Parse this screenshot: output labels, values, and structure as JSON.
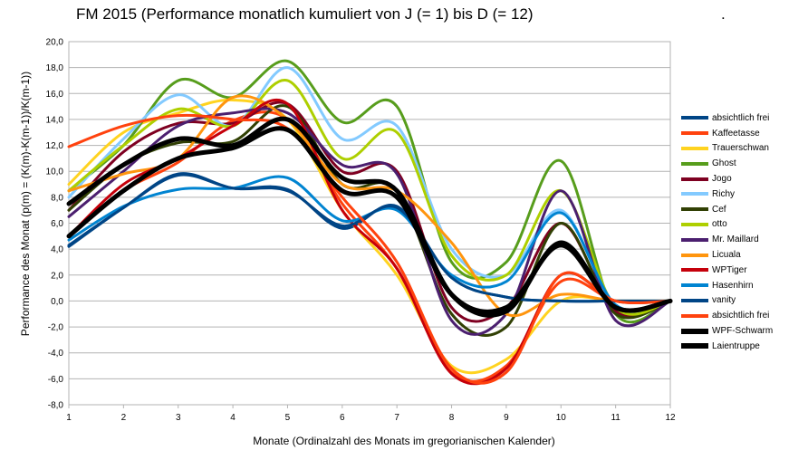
{
  "chart_data": {
    "type": "line",
    "title": "FM 2015 (Performance monatlich kumuliert von J (= 1) bis D (= 12)",
    "title_suffix": ".",
    "xlabel": "Monate (Ordinalzahl des Monats im gregorianischen Kalender)",
    "ylabel": "Performance des Monat (p(m) = (K(m)-K(m-1))/K(m-1))",
    "x": [
      1,
      2,
      3,
      4,
      5,
      6,
      7,
      8,
      9,
      10,
      11,
      12
    ],
    "xlim": [
      1,
      12
    ],
    "ylim": [
      -8,
      20
    ],
    "yticks": [
      "-8,0",
      "-6,0",
      "-4,0",
      "-2,0",
      "0,0",
      "2,0",
      "4,0",
      "6,0",
      "8,0",
      "10,0",
      "12,0",
      "14,0",
      "16,0",
      "18,0",
      "20,0"
    ],
    "xticks": [
      "1",
      "2",
      "3",
      "4",
      "5",
      "6",
      "7",
      "8",
      "9",
      "10",
      "11",
      "12"
    ],
    "grid": true,
    "legend_position": "right",
    "series": [
      {
        "name": "absichtlich frei",
        "color": "#004586",
        "values": [
          4.3,
          7.2,
          9.7,
          8.7,
          8.6,
          5.6,
          7.3,
          1.8,
          0.3,
          0.0,
          0.0,
          0.0
        ]
      },
      {
        "name": "Kaffeetasse",
        "color": "#ff420e",
        "values": [
          5.0,
          8.5,
          10.7,
          13.9,
          14.0,
          7.5,
          2.5,
          -5.5,
          -5.0,
          1.5,
          0.0,
          0.0
        ]
      },
      {
        "name": "Trauerschwan",
        "color": "#ffd320",
        "values": [
          9.0,
          13.0,
          14.5,
          15.5,
          14.0,
          7.0,
          2.0,
          -5.0,
          -4.5,
          0.0,
          0.0,
          0.0
        ]
      },
      {
        "name": "Ghost",
        "color": "#579d1c",
        "values": [
          8.5,
          12.0,
          17.0,
          15.7,
          18.5,
          13.8,
          15.0,
          3.0,
          3.0,
          10.8,
          -1.0,
          0.0
        ]
      },
      {
        "name": "Jogo",
        "color": "#7e0021",
        "values": [
          7.0,
          11.5,
          13.7,
          13.7,
          15.2,
          10.0,
          10.0,
          -0.5,
          -0.5,
          6.0,
          -0.8,
          0.0
        ]
      },
      {
        "name": "Richy",
        "color": "#83caff",
        "values": [
          8.0,
          12.5,
          15.9,
          13.5,
          18.0,
          12.5,
          13.5,
          4.0,
          2.0,
          7.0,
          -0.5,
          0.0
        ]
      },
      {
        "name": "Cef",
        "color": "#314004",
        "values": [
          7.0,
          10.5,
          12.2,
          12.3,
          15.0,
          9.0,
          8.5,
          -1.0,
          -2.0,
          6.0,
          -1.0,
          0.0
        ]
      },
      {
        "name": "otto",
        "color": "#aecf00",
        "values": [
          8.5,
          12.0,
          14.8,
          13.5,
          17.0,
          11.0,
          13.0,
          3.5,
          2.0,
          8.5,
          -0.5,
          0.0
        ]
      },
      {
        "name": "Mr. Maillard",
        "color": "#4b1f6f",
        "values": [
          6.5,
          10.0,
          13.5,
          14.5,
          14.5,
          10.5,
          9.8,
          -1.5,
          -1.0,
          8.5,
          -1.5,
          0.0
        ]
      },
      {
        "name": "Licuala",
        "color": "#ff950e",
        "values": [
          8.5,
          9.8,
          11.0,
          15.7,
          14.0,
          9.0,
          8.5,
          4.5,
          -1.0,
          0.5,
          0.0,
          0.0
        ]
      },
      {
        "name": "WPTiger",
        "color": "#c5000b",
        "values": [
          5.0,
          9.0,
          11.0,
          13.5,
          15.2,
          7.0,
          2.5,
          -5.6,
          -5.2,
          2.0,
          0.0,
          0.0
        ]
      },
      {
        "name": "Hasenhirn",
        "color": "#0084d1",
        "values": [
          4.7,
          7.3,
          8.6,
          8.7,
          9.5,
          6.2,
          7.0,
          2.0,
          1.5,
          6.8,
          -0.3,
          0.0
        ]
      },
      {
        "name": "vanity",
        "color": "#004586",
        "values": [
          4.2,
          7.2,
          9.8,
          8.7,
          8.5,
          5.8,
          7.2,
          1.8,
          0.3,
          0.0,
          0.0,
          0.0
        ]
      },
      {
        "name": "absichtlich frei",
        "color": "#ff420e",
        "values": [
          11.9,
          13.5,
          14.3,
          14.0,
          13.3,
          8.0,
          3.0,
          -5.2,
          -5.5,
          2.0,
          0.0,
          0.0
        ]
      },
      {
        "name": "WPF-Schwarm",
        "color": "#000000",
        "values": [
          7.5,
          10.5,
          12.5,
          12.0,
          14.0,
          9.5,
          8.5,
          0.5,
          -0.8,
          4.5,
          -0.5,
          0.0
        ]
      },
      {
        "name": "Laientruppe",
        "color": "#000000",
        "values": [
          5.0,
          8.5,
          11.0,
          11.8,
          13.2,
          8.5,
          8.0,
          0.5,
          -0.5,
          4.3,
          -0.5,
          0.0
        ]
      }
    ]
  }
}
